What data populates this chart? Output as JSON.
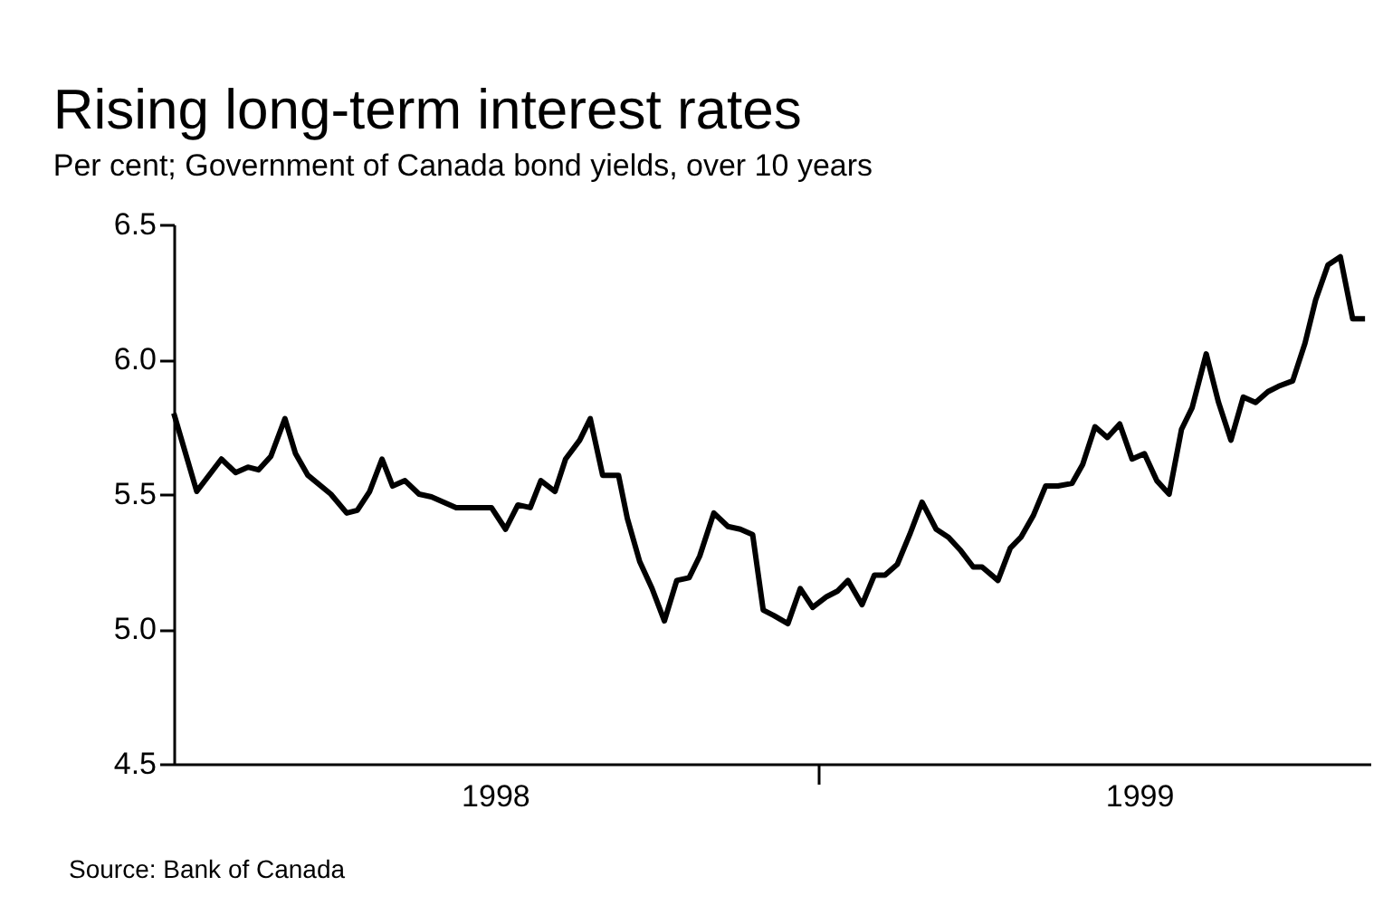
{
  "chart_data": {
    "type": "line",
    "title": "Rising long-term interest rates",
    "subtitle": "Per cent; Government of Canada bond yields, over 10 years",
    "x": [
      "1998-01-01",
      "1998-01-14",
      "1998-01-28",
      "1998-02-05",
      "1998-02-12",
      "1998-02-18",
      "1998-02-25",
      "1998-03-05",
      "1998-03-11",
      "1998-03-18",
      "1998-03-31",
      "1998-04-09",
      "1998-04-15",
      "1998-04-22",
      "1998-04-29",
      "1998-05-05",
      "1998-05-12",
      "1998-05-20",
      "1998-05-27",
      "1998-06-03",
      "1998-06-10",
      "1998-06-30",
      "1998-07-08",
      "1998-07-15",
      "1998-07-22",
      "1998-07-28",
      "1998-08-05",
      "1998-08-11",
      "1998-08-19",
      "1998-08-25",
      "1998-09-01",
      "1998-09-10",
      "1998-09-15",
      "1998-09-22",
      "1998-09-29",
      "1998-10-06",
      "1998-10-13",
      "1998-10-20",
      "1998-10-26",
      "1998-11-03",
      "1998-11-11",
      "1998-11-18",
      "1998-11-25",
      "1998-12-01",
      "1998-12-07",
      "1998-12-15",
      "1998-12-22",
      "1998-12-29",
      "1999-01-06",
      "1999-01-12",
      "1999-01-18",
      "1999-01-26",
      "1999-02-02",
      "1999-02-08",
      "1999-02-15",
      "1999-02-22",
      "1999-03-01",
      "1999-03-09",
      "1999-03-16",
      "1999-03-23",
      "1999-03-30",
      "1999-04-04",
      "1999-04-13",
      "1999-04-20",
      "1999-04-26",
      "1999-05-03",
      "1999-05-10",
      "1999-05-17",
      "1999-05-25",
      "1999-05-31",
      "1999-06-07",
      "1999-06-14",
      "1999-06-21",
      "1999-06-28",
      "1999-07-05",
      "1999-07-12",
      "1999-07-19",
      "1999-07-26",
      "1999-08-01",
      "1999-08-09",
      "1999-08-16",
      "1999-08-23",
      "1999-08-30",
      "1999-09-06",
      "1999-09-13",
      "1999-09-19",
      "1999-09-27",
      "1999-10-04",
      "1999-10-10",
      "1999-10-17",
      "1999-10-24",
      "1999-10-31",
      "1999-11-07"
    ],
    "series": [
      {
        "color": "#000000",
        "values": [
          5.8,
          5.51,
          5.63,
          5.58,
          5.6,
          5.59,
          5.64,
          5.78,
          5.65,
          5.57,
          5.5,
          5.43,
          5.44,
          5.51,
          5.63,
          5.53,
          5.55,
          5.5,
          5.49,
          5.47,
          5.45,
          5.45,
          5.37,
          5.46,
          5.45,
          5.55,
          5.51,
          5.63,
          5.7,
          5.78,
          5.57,
          5.57,
          5.41,
          5.25,
          5.15,
          5.03,
          5.18,
          5.19,
          5.27,
          5.43,
          5.38,
          5.37,
          5.35,
          5.07,
          5.05,
          5.02,
          5.15,
          5.08,
          5.12,
          5.14,
          5.18,
          5.09,
          5.2,
          5.2,
          5.24,
          5.35,
          5.47,
          5.37,
          5.34,
          5.29,
          5.23,
          5.23,
          5.18,
          5.3,
          5.34,
          5.42,
          5.53,
          5.53,
          5.54,
          5.61,
          5.75,
          5.71,
          5.76,
          5.63,
          5.65,
          5.55,
          5.5,
          5.74,
          5.82,
          6.02,
          5.84,
          5.7,
          5.86,
          5.84,
          5.88,
          5.9,
          5.92,
          6.06,
          6.22,
          6.35,
          6.38,
          6.15,
          6.15
        ]
      }
    ],
    "xlim": [
      "1998-01-01",
      "1999-11-10"
    ],
    "xticks": [
      {
        "value": "1998-07-02",
        "label": "1998"
      },
      {
        "value": "1999-01-01",
        "label": null
      },
      {
        "value": "1999-07-02",
        "label": "1999"
      }
    ],
    "ylim": [
      4.5,
      6.5
    ],
    "yticks": [
      {
        "value": 4.5,
        "label": "4.5"
      },
      {
        "value": 5,
        "label": "5.0"
      },
      {
        "value": 5.5,
        "label": "5.5"
      },
      {
        "value": 6,
        "label": "6.0"
      },
      {
        "value": 6.5,
        "label": "6.5"
      }
    ],
    "grid": false,
    "legend": false,
    "marker": "none",
    "line_style": "solid",
    "annotations": [
      "Source: Bank of Canada"
    ]
  }
}
